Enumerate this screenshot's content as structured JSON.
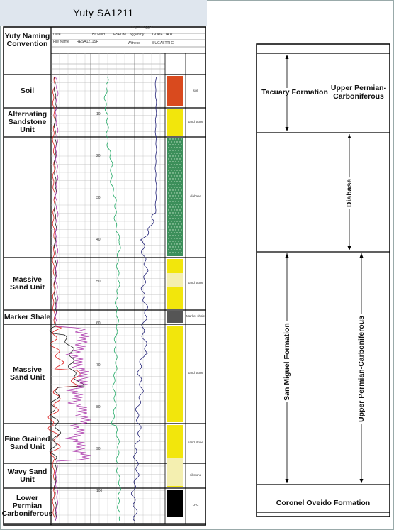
{
  "title": "Yuty SA1211",
  "left_header": "Yuty Naming Convention",
  "header_fields": [
    "Date",
    "File Name",
    "Bit Fluid",
    "ESPUM",
    "Logged by",
    "GORETTA R",
    "Witness",
    "SUGASTTI C",
    "Depth Logger",
    "RESA1211SR"
  ],
  "units": [
    {
      "label": "Soil",
      "note": "soil"
    },
    {
      "label": "Alternating Sandstone Unit",
      "note": "sand stone"
    },
    {
      "label": "",
      "note": "diabase"
    },
    {
      "label": "Massive Sand Unit",
      "note": "sand stone"
    },
    {
      "label": "Marker Shale",
      "note": "Marker shale"
    },
    {
      "label": "Massive Sand Unit",
      "note": "sand stone"
    },
    {
      "label": "Fine Grained Sand Unit",
      "note": "sand stone"
    },
    {
      "label": "Wavy Sand Unit",
      "note": "siltstone"
    },
    {
      "label": "Lower Permian Carboniferous",
      "note": "LPC"
    }
  ],
  "depths": [
    "10",
    "20",
    "30",
    "40",
    "50",
    "60",
    "70",
    "80",
    "90",
    "100"
  ],
  "right_column": {
    "tacuary": "Tacuary Formation",
    "tacuary_age": "Upper Permian-Carboniferous",
    "diabase": "Diabase",
    "san_miguel": "San Miguel Formation",
    "san_miguel_age": "Upper Permian-Carboniferous",
    "coronel": "Coronel Oveido Formation"
  }
}
